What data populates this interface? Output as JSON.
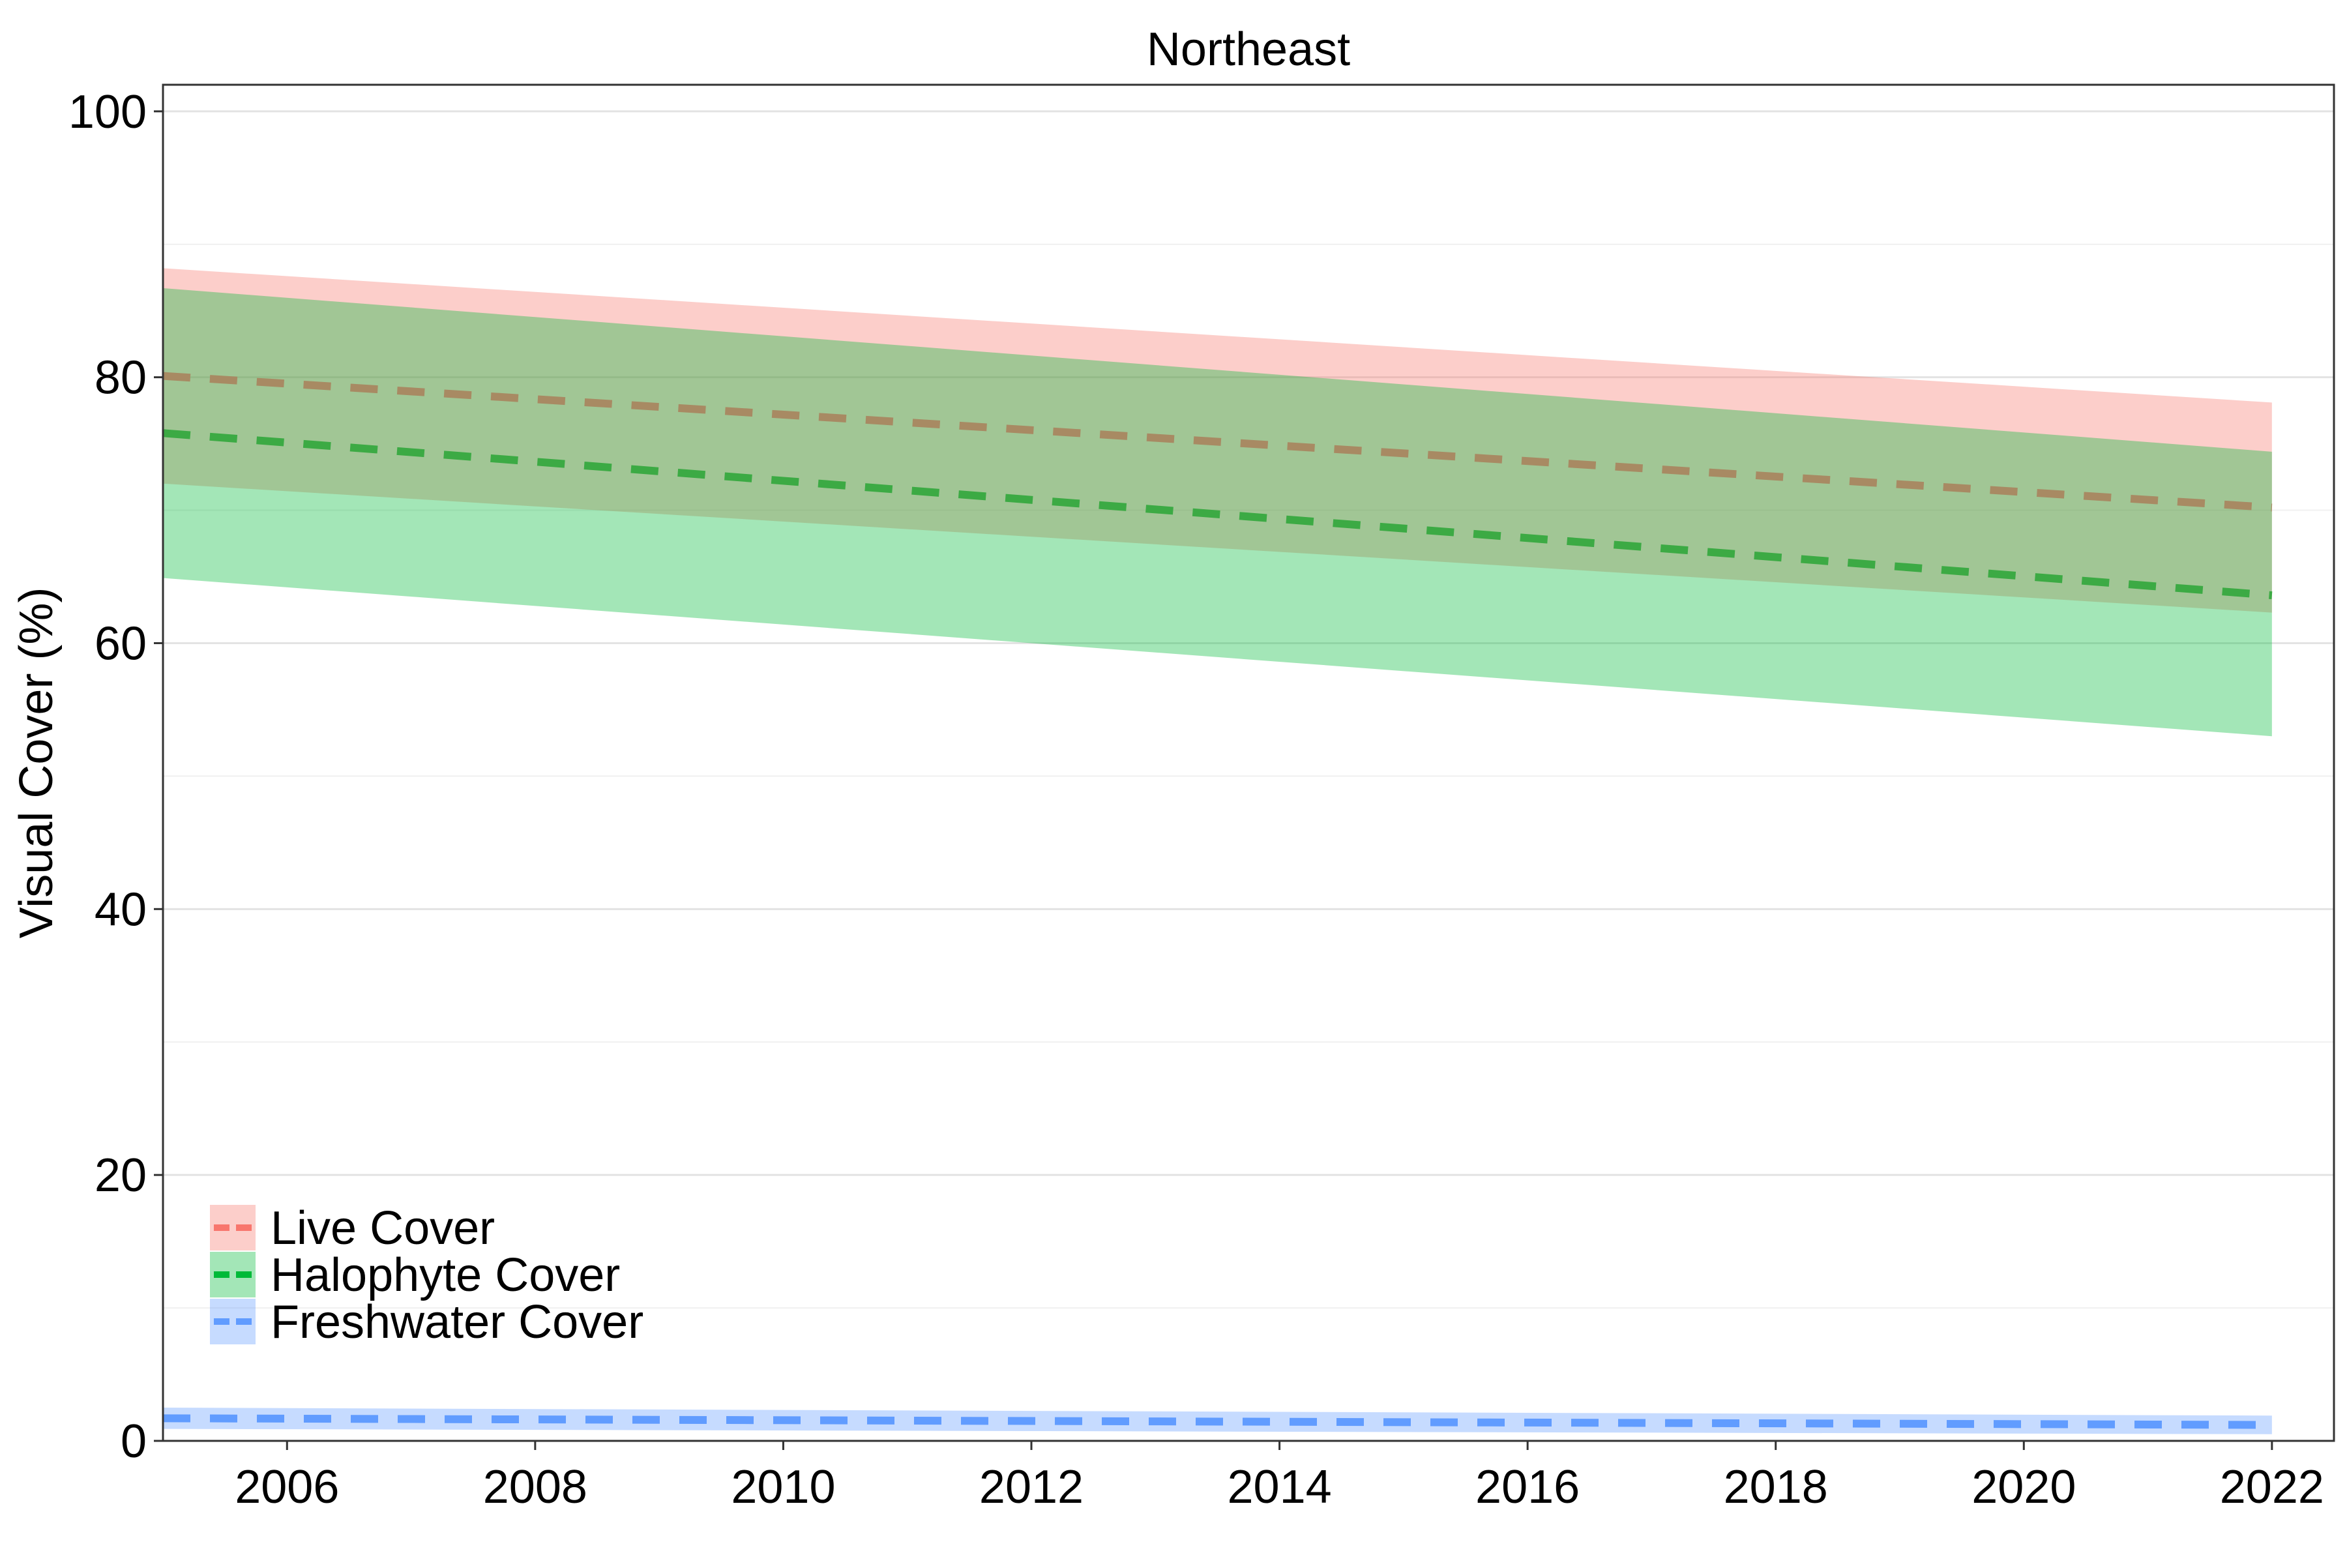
{
  "chart_data": {
    "type": "line",
    "title": "Northeast",
    "xlabel": "",
    "ylabel": "Visual Cover (%)",
    "xlim": [
      2005,
      2022.5
    ],
    "ylim": [
      0,
      102
    ],
    "x_ticks": [
      2006,
      2008,
      2010,
      2012,
      2014,
      2016,
      2018,
      2020,
      2022
    ],
    "y_ticks": [
      0,
      20,
      40,
      60,
      80,
      100
    ],
    "y_minor_ticks": [
      10,
      30,
      50,
      70,
      90
    ],
    "grid": true,
    "legend_position": "bottom-left",
    "series": [
      {
        "name": "Live Cover",
        "color": "#F8766D",
        "line_color": "#A88A63",
        "x": [
          2005,
          2022
        ],
        "fit": [
          80.1,
          70.2
        ],
        "lower": [
          72.0,
          62.3
        ],
        "upper": [
          88.2,
          78.1
        ]
      },
      {
        "name": "Halophyte Cover",
        "color": "#00BA38",
        "line_color": "#3CAA44",
        "x": [
          2005,
          2022
        ],
        "fit": [
          75.8,
          63.6
        ],
        "lower": [
          64.9,
          53.0
        ],
        "upper": [
          86.7,
          74.4
        ]
      },
      {
        "name": "Freshwater Cover",
        "color": "#619CFF",
        "line_color": "#619CFF",
        "x": [
          2005,
          2022
        ],
        "fit": [
          1.7,
          1.2
        ],
        "lower": [
          0.9,
          0.5
        ],
        "upper": [
          2.5,
          1.9
        ]
      }
    ]
  }
}
